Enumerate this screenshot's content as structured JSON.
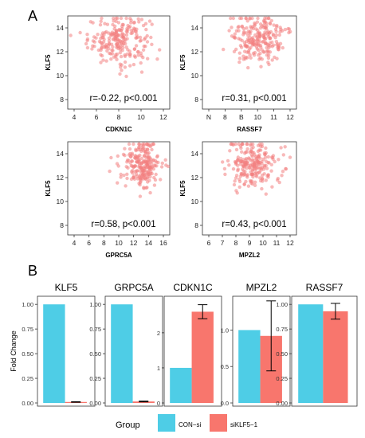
{
  "panel_labels": {
    "a": "A",
    "b": "B"
  },
  "colors": {
    "scatter_point": "#f28080",
    "con_si": "#4ecde6",
    "siklf5": "#f8766d"
  },
  "chart_data": [
    {
      "type": "scatter",
      "panel": "A",
      "xlabel": "CDKN1C",
      "ylabel": "KLF5",
      "annotation": "r=-0.22, p<0.001",
      "xticks": [
        "4",
        "6",
        "8",
        "10",
        "12"
      ],
      "xlim": [
        3,
        13.5
      ],
      "yticks": [
        "8",
        "10",
        "12",
        "14"
      ],
      "ylim": [
        7.2,
        15
      ],
      "point_cloud": {
        "x_mean": 8.3,
        "x_sd": 1.6,
        "y_mean": 13.0,
        "y_sd": 1.0,
        "n": 230
      }
    },
    {
      "type": "scatter",
      "panel": "A",
      "xlabel": "RASSF7",
      "ylabel": "KLF5",
      "annotation": "r=0.31, p<0.001",
      "xticks": [
        "N",
        "8",
        "B",
        "10",
        "11",
        "12"
      ],
      "xlim": [
        6.5,
        12.3
      ],
      "yticks": [
        "8",
        "10",
        "12",
        "14"
      ],
      "ylim": [
        7.2,
        15
      ],
      "point_cloud": {
        "x_mean": 10.0,
        "x_sd": 0.8,
        "y_mean": 13.0,
        "y_sd": 1.0,
        "n": 230
      }
    },
    {
      "type": "scatter",
      "panel": "A",
      "xlabel": "GPRC5A",
      "ylabel": "KLF5",
      "annotation": "r=0.58, p<0.001",
      "xticks": [
        "4",
        "6",
        "8",
        "10",
        "12",
        "14",
        "16"
      ],
      "xlim": [
        3,
        16.5
      ],
      "yticks": [
        "8",
        "10",
        "12",
        "14"
      ],
      "ylim": [
        7.2,
        15
      ],
      "point_cloud": {
        "x_mean": 12.8,
        "x_sd": 1.2,
        "y_mean": 12.9,
        "y_sd": 1.0,
        "n": 230
      }
    },
    {
      "type": "scatter",
      "panel": "A",
      "xlabel": "MPZL2",
      "ylabel": "KLF5",
      "annotation": "r=0.43, p<0.001",
      "xticks": [
        "6",
        "7",
        "8",
        "9",
        "10",
        "11",
        "12"
      ],
      "xlim": [
        5.8,
        13.8
      ],
      "yticks": [
        "8",
        "10",
        "12",
        "14"
      ],
      "ylim": [
        7.2,
        15
      ],
      "point_cloud": {
        "x_mean": 10.0,
        "x_sd": 1.1,
        "y_mean": 13.0,
        "y_sd": 1.0,
        "n": 230
      }
    },
    {
      "type": "bar",
      "panel": "B",
      "title": "KLF5",
      "ylabel": "Fold Change",
      "categories": [
        "CON-si",
        "siKLF5-1"
      ],
      "values": [
        1.0,
        0.01
      ],
      "errors": [
        0,
        0.003
      ],
      "yticks": [
        "0.00",
        "0.25",
        "0.50",
        "0.75",
        "1.00"
      ],
      "ylim": [
        0,
        1.05
      ]
    },
    {
      "type": "bar",
      "panel": "B",
      "title": "GRPC5A",
      "categories": [
        "CON-si",
        "siKLF5-1"
      ],
      "values": [
        1.0,
        0.015
      ],
      "errors": [
        0,
        0.004
      ],
      "yticks": [
        "0.00",
        "0.25",
        "0.50",
        "0.75",
        "1.00"
      ],
      "ylim": [
        0,
        1.05
      ]
    },
    {
      "type": "bar",
      "panel": "B",
      "title": "CDKN1C",
      "categories": [
        "CON-si",
        "siKLF5-1"
      ],
      "values": [
        1.0,
        2.6
      ],
      "errors": [
        0,
        0.2
      ],
      "yticks": [
        "0",
        "1",
        "2"
      ],
      "ylim": [
        0,
        2.95
      ]
    },
    {
      "type": "bar",
      "panel": "B",
      "title": "MPZL2",
      "categories": [
        "CON-si",
        "siKLF5-1"
      ],
      "values": [
        1.0,
        0.92
      ],
      "errors": [
        0,
        0.48
      ],
      "yticks": [
        "0.0",
        "0.5",
        "1.0"
      ],
      "ylim": [
        0,
        1.42
      ]
    },
    {
      "type": "bar",
      "panel": "B",
      "title": "RASSF7",
      "categories": [
        "CON-si",
        "siKLF5-1"
      ],
      "values": [
        1.0,
        0.93
      ],
      "errors": [
        0,
        0.08
      ],
      "yticks": [
        "0.00",
        "0.25",
        "0.50",
        "0.75",
        "1.00"
      ],
      "ylim": [
        0,
        1.05
      ]
    }
  ],
  "legend": {
    "title": "Group",
    "items": [
      {
        "label": "CON−si",
        "color": "#4ecde6"
      },
      {
        "label": "siKLF5−1",
        "color": "#f8766d"
      }
    ]
  }
}
